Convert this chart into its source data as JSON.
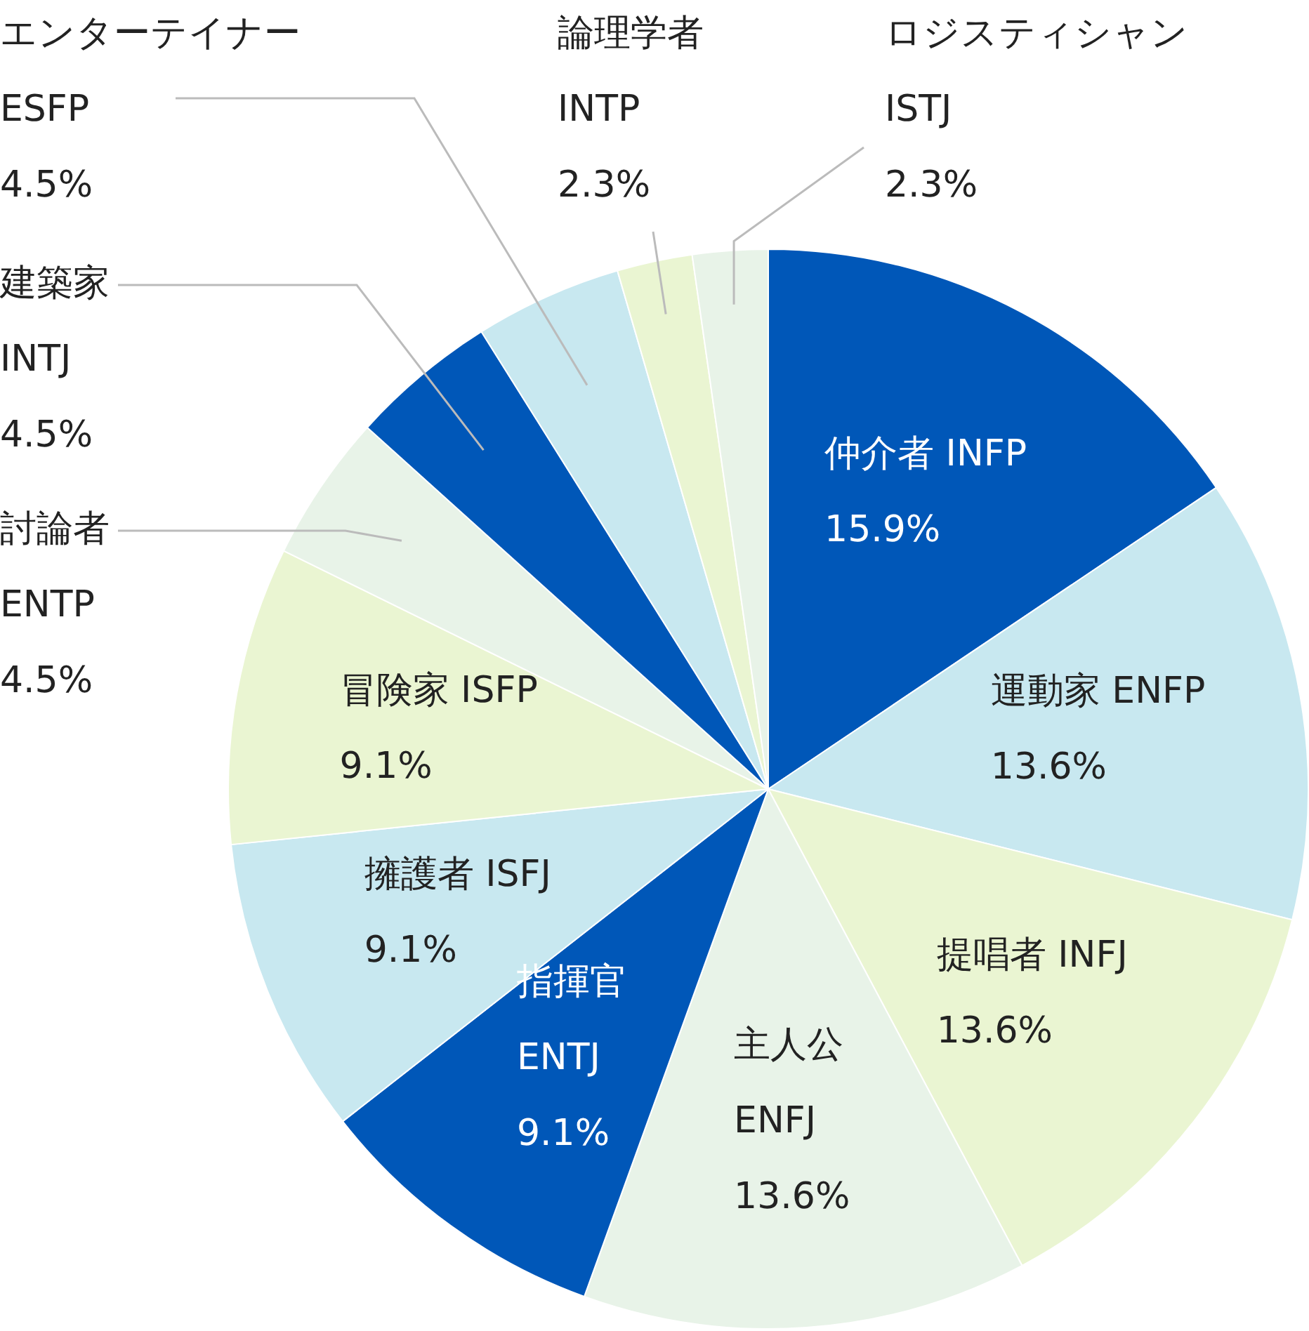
{
  "chart_data": {
    "type": "pie",
    "categories": [
      "仲介者 INFP",
      "運動家 ENFP",
      "提唱者 INFJ",
      "主人公\nENFJ",
      "指揮官\nENTJ",
      "擁護者 ISFJ",
      "冒険家 ISFP",
      "討論者\nENTP",
      "建築家\nINTJ",
      "エンターテイナー\nESFP",
      "論理学者\nINTP",
      "ロジスティシャン\nISTJ"
    ],
    "values": [
      15.9,
      13.6,
      13.6,
      13.6,
      9.1,
      9.1,
      9.1,
      4.5,
      4.5,
      4.5,
      2.3,
      2.3
    ],
    "value_labels": [
      "15.9%",
      "13.6%",
      "13.6%",
      "13.6%",
      "9.1%",
      "9.1%",
      "9.1%",
      "4.5%",
      "4.5%",
      "4.5%",
      "2.3%",
      "2.3%"
    ],
    "colors": [
      "#0057b8",
      "#c8e8f0",
      "#eaf5d2",
      "#e8f3e8",
      "#0057b8",
      "#c8e8f0",
      "#eaf5d2",
      "#e8f3e8",
      "#0057b8",
      "#c8e8f0",
      "#eaf5d2",
      "#e8f3e8"
    ],
    "legend": false
  }
}
